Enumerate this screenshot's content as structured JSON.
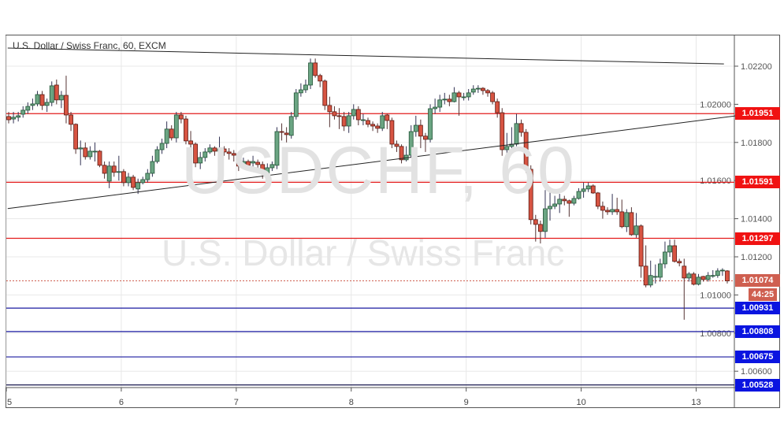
{
  "chart_data": {
    "type": "candlestick",
    "title": "U.S. Dollar / Swiss Franc, 60, EXCM",
    "watermark_symbol": "USDCHF, 60",
    "watermark_name": "U.S. Dollar / Swiss Franc",
    "ylim": [
      1.0048,
      1.0236
    ],
    "y_ticks": [
      "1.02200",
      "1.02000",
      "1.01800",
      "1.01600",
      "1.01400",
      "1.01200",
      "1.01000",
      "1.00800",
      "1.00600"
    ],
    "x_ticks": [
      {
        "label": "5",
        "index": 0
      },
      {
        "label": "6",
        "index": 24
      },
      {
        "label": "7",
        "index": 48
      },
      {
        "label": "8",
        "index": 72
      },
      {
        "label": "9",
        "index": 96
      },
      {
        "label": "10",
        "index": 120
      },
      {
        "label": "13",
        "index": 144
      }
    ],
    "candle_fields": [
      "open",
      "high",
      "low",
      "close"
    ],
    "candles": [
      [
        1.01936,
        1.0196,
        1.019,
        1.01919
      ],
      [
        1.01923,
        1.0196,
        1.019,
        1.01932
      ],
      [
        1.01932,
        1.0196,
        1.0191,
        1.0194
      ],
      [
        1.01948,
        1.0199,
        1.0193,
        1.01969
      ],
      [
        1.01969,
        1.0201,
        1.0195,
        1.01989
      ],
      [
        1.01994,
        1.0203,
        1.0197,
        1.02002
      ],
      [
        1.02002,
        1.0207,
        1.0199,
        1.02051
      ],
      [
        1.02051,
        1.0207,
        1.0197,
        1.01994
      ],
      [
        1.01994,
        1.0203,
        1.0196,
        1.0201
      ],
      [
        1.0201,
        1.0212,
        1.0199,
        1.02097
      ],
      [
        1.02101,
        1.0213,
        1.02,
        1.02023
      ],
      [
        1.02023,
        1.0207,
        1.0198,
        1.02047
      ],
      [
        1.02047,
        1.0215,
        1.019,
        1.01944
      ],
      [
        1.01944,
        1.0196,
        1.0186,
        1.01895
      ],
      [
        1.01895,
        1.019,
        1.0174,
        1.01766
      ],
      [
        1.01766,
        1.0181,
        1.0168,
        1.01771
      ],
      [
        1.01771,
        1.018,
        1.0171,
        1.01725
      ],
      [
        1.01725,
        1.0178,
        1.0171,
        1.01754
      ],
      [
        1.01754,
        1.018,
        1.017,
        1.01754
      ],
      [
        1.01754,
        1.0176,
        1.0167,
        1.0168
      ],
      [
        1.0168,
        1.017,
        1.0161,
        1.01638
      ],
      [
        1.01597,
        1.017,
        1.0156,
        1.01676
      ],
      [
        1.01676,
        1.017,
        1.0162,
        1.01643
      ],
      [
        1.01643,
        1.0173,
        1.016,
        1.01647
      ],
      [
        1.01647,
        1.0166,
        1.0157,
        1.01589
      ],
      [
        1.01589,
        1.0164,
        1.0157,
        1.01618
      ],
      [
        1.01618,
        1.0163,
        1.0155,
        1.01564
      ],
      [
        1.01556,
        1.0161,
        1.0153,
        1.01589
      ],
      [
        1.01589,
        1.0162,
        1.0158,
        1.01605
      ],
      [
        1.01605,
        1.0166,
        1.0159,
        1.01638
      ],
      [
        1.01638,
        1.0173,
        1.0162,
        1.017
      ],
      [
        1.017,
        1.0178,
        1.0169,
        1.01762
      ],
      [
        1.01762,
        1.0182,
        1.0174,
        1.01795
      ],
      [
        1.01795,
        1.0191,
        1.0177,
        1.0187
      ],
      [
        1.0187,
        1.0189,
        1.0181,
        1.01824
      ],
      [
        1.01824,
        1.0196,
        1.018,
        1.01944
      ],
      [
        1.01944,
        1.0196,
        1.019,
        1.01923
      ],
      [
        1.01923,
        1.0194,
        1.0179,
        1.01808
      ],
      [
        1.01808,
        1.0186,
        1.0176,
        1.01791
      ],
      [
        1.01791,
        1.018,
        1.0167,
        1.01692
      ],
      [
        1.01692,
        1.0175,
        1.0166,
        1.01721
      ],
      [
        1.01721,
        1.0177,
        1.017,
        1.0175
      ],
      [
        1.0175,
        1.0179,
        1.0174,
        1.01771
      ],
      [
        1.01771,
        1.0178,
        1.0173,
        1.01754
      ],
      [
        1.01754,
        1.0183,
        1.0172,
        1.01766
      ],
      [
        1.01766,
        1.0178,
        1.0173,
        1.0175
      ],
      [
        1.0175,
        1.0177,
        1.0171,
        1.01742
      ],
      [
        1.01742,
        1.0176,
        1.017,
        1.01733
      ],
      [
        1.01733,
        1.0174,
        1.0165,
        1.01676
      ],
      [
        1.01676,
        1.0172,
        1.0166,
        1.017
      ],
      [
        1.017,
        1.0171,
        1.0166,
        1.0168
      ],
      [
        1.01692,
        1.0173,
        1.0166,
        1.017
      ],
      [
        1.01696,
        1.0171,
        1.0165,
        1.01684
      ],
      [
        1.01684,
        1.017,
        1.0161,
        1.01638
      ],
      [
        1.01638,
        1.0169,
        1.0163,
        1.01667
      ],
      [
        1.01667,
        1.017,
        1.0165,
        1.01684
      ],
      [
        1.0168,
        1.0188,
        1.0166,
        1.01857
      ],
      [
        1.01857,
        1.019,
        1.0181,
        1.01853
      ],
      [
        1.01849,
        1.0188,
        1.018,
        1.01841
      ],
      [
        1.01837,
        1.0196,
        1.0182,
        1.01936
      ],
      [
        1.01936,
        1.0208,
        1.0192,
        1.0206
      ],
      [
        1.0206,
        1.0211,
        1.0204,
        1.02076
      ],
      [
        1.02076,
        1.0213,
        1.0206,
        1.02101
      ],
      [
        1.02101,
        1.0224,
        1.0208,
        1.02217
      ],
      [
        1.02217,
        1.0224,
        1.0214,
        1.02151
      ],
      [
        1.02151,
        1.0216,
        1.0209,
        1.02122
      ],
      [
        1.02122,
        1.0213,
        1.0197,
        1.01994
      ],
      [
        1.01994,
        1.0204,
        1.0188,
        1.01961
      ],
      [
        1.01961,
        1.0199,
        1.0192,
        1.0194
      ],
      [
        1.0194,
        1.0198,
        1.0187,
        1.01936
      ],
      [
        1.01936,
        1.0196,
        1.0186,
        1.01886
      ],
      [
        1.01886,
        1.0196,
        1.0185,
        1.0194
      ],
      [
        1.0194,
        1.02,
        1.0192,
        1.01973
      ],
      [
        1.01973,
        1.0199,
        1.0189,
        1.01919
      ],
      [
        1.01919,
        1.0195,
        1.0189,
        1.01919
      ],
      [
        1.01915,
        1.0193,
        1.0188,
        1.01895
      ],
      [
        1.01895,
        1.0191,
        1.0186,
        1.01886
      ],
      [
        1.01886,
        1.019,
        1.0185,
        1.01874
      ],
      [
        1.01874,
        1.0196,
        1.0186,
        1.0194
      ],
      [
        1.01944,
        1.0195,
        1.0187,
        1.01915
      ],
      [
        1.01915,
        1.0193,
        1.0177,
        1.01791
      ],
      [
        1.01791,
        1.0181,
        1.0175,
        1.01779
      ],
      [
        1.01779,
        1.0179,
        1.0169,
        1.01709
      ],
      [
        1.01709,
        1.0178,
        1.017,
        1.01733
      ],
      [
        1.01733,
        1.0189,
        1.0172,
        1.01857
      ],
      [
        1.01857,
        1.0194,
        1.0183,
        1.0189
      ],
      [
        1.0189,
        1.0192,
        1.0177,
        1.01833
      ],
      [
        1.01833,
        1.0185,
        1.0175,
        1.01816
      ],
      [
        1.01816,
        1.02,
        1.018,
        1.01977
      ],
      [
        1.01977,
        1.0203,
        1.0195,
        1.01985
      ],
      [
        1.01985,
        1.0205,
        1.0196,
        1.02023
      ],
      [
        1.02023,
        1.0206,
        1.02,
        1.02027
      ],
      [
        1.02027,
        1.0205,
        1.0199,
        1.02014
      ],
      [
        1.02014,
        1.0209,
        1.0201,
        1.0206
      ],
      [
        1.0206,
        1.0207,
        1.0194,
        1.02039
      ],
      [
        1.02039,
        1.0206,
        1.0202,
        1.02039
      ],
      [
        1.02039,
        1.0208,
        1.0202,
        1.0206
      ],
      [
        1.02064,
        1.021,
        1.0205,
        1.0208
      ],
      [
        1.02084,
        1.021,
        1.0206,
        1.02084
      ],
      [
        1.02084,
        1.0209,
        1.0205,
        1.02072
      ],
      [
        1.02072,
        1.0208,
        1.0204,
        1.0206
      ],
      [
        1.0206,
        1.0207,
        1.02,
        1.02014
      ],
      [
        1.02014,
        1.0203,
        1.0193,
        1.01956
      ],
      [
        1.01956,
        1.0198,
        1.0173,
        1.01762
      ],
      [
        1.01762,
        1.0185,
        1.0174,
        1.01779
      ],
      [
        1.01779,
        1.0188,
        1.0177,
        1.01791
      ],
      [
        1.01791,
        1.0195,
        1.0178,
        1.01899
      ],
      [
        1.01899,
        1.0192,
        1.0183,
        1.01853
      ],
      [
        1.01853,
        1.0187,
        1.0164,
        1.01659
      ],
      [
        1.01659,
        1.0168,
        1.0137,
        1.01395
      ],
      [
        1.01395,
        1.0142,
        1.0128,
        1.0137
      ],
      [
        1.0137,
        1.0139,
        1.0127,
        1.01333
      ],
      [
        1.01333,
        1.0155,
        1.013,
        1.01452
      ],
      [
        1.01452,
        1.0155,
        1.0139,
        1.01465
      ],
      [
        1.01465,
        1.0152,
        1.0145,
        1.01477
      ],
      [
        1.01477,
        1.0153,
        1.0143,
        1.01502
      ],
      [
        1.01502,
        1.0152,
        1.0147,
        1.01494
      ],
      [
        1.01494,
        1.015,
        1.0141,
        1.01481
      ],
      [
        1.01481,
        1.0152,
        1.0147,
        1.01506
      ],
      [
        1.01506,
        1.0156,
        1.015,
        1.01543
      ],
      [
        1.01543,
        1.0159,
        1.0151,
        1.01556
      ],
      [
        1.01556,
        1.0159,
        1.0154,
        1.01572
      ],
      [
        1.01572,
        1.0158,
        1.0153,
        1.01535
      ],
      [
        1.01535,
        1.0154,
        1.0145,
        1.01465
      ],
      [
        1.01465,
        1.0149,
        1.014,
        1.01444
      ],
      [
        1.01444,
        1.0146,
        1.0142,
        1.01436
      ],
      [
        1.01436,
        1.0153,
        1.0142,
        1.01448
      ],
      [
        1.01448,
        1.0151,
        1.0142,
        1.01436
      ],
      [
        1.01436,
        1.015,
        1.0135,
        1.01358
      ],
      [
        1.01358,
        1.0145,
        1.0133,
        1.01432
      ],
      [
        1.01432,
        1.0146,
        1.0131,
        1.01316
      ],
      [
        1.01316,
        1.0143,
        1.013,
        1.01362
      ],
      [
        1.01362,
        1.0137,
        1.0109,
        1.01151
      ],
      [
        1.01151,
        1.0126,
        1.0104,
        1.01052
      ],
      [
        1.01052,
        1.0118,
        1.0104,
        1.01102
      ],
      [
        1.01097,
        1.0116,
        1.0106,
        1.01097
      ],
      [
        1.01093,
        1.0119,
        1.0107,
        1.01163
      ],
      [
        1.01163,
        1.0128,
        1.0114,
        1.01225
      ],
      [
        1.01225,
        1.0129,
        1.012,
        1.01258
      ],
      [
        1.01258,
        1.0129,
        1.0117,
        1.01176
      ],
      [
        1.01176,
        1.0119,
        1.0115,
        1.01168
      ],
      [
        1.01151,
        1.0119,
        1.0087,
        1.01089
      ],
      [
        1.01089,
        1.0112,
        1.0107,
        1.0111
      ],
      [
        1.0111,
        1.0112,
        1.0105,
        1.01056
      ],
      [
        1.01056,
        1.0111,
        1.0105,
        1.01093
      ],
      [
        1.01097,
        1.011,
        1.0107,
        1.01081
      ],
      [
        1.01081,
        1.0112,
        1.0107,
        1.01102
      ],
      [
        1.01102,
        1.0113,
        1.0109,
        1.01102
      ],
      [
        1.01102,
        1.0114,
        1.0109,
        1.01126
      ],
      [
        1.0113,
        1.0114,
        1.011,
        1.0113
      ],
      [
        1.01126,
        1.0113,
        1.0106,
        1.01074
      ]
    ],
    "horizontal_levels": [
      {
        "price": "1.01951",
        "color": "#e31b1b",
        "label_color": "#f01212"
      },
      {
        "price": "1.01591",
        "color": "#e31b1b",
        "label_color": "#f01212"
      },
      {
        "price": "1.01297",
        "color": "#e31b1b",
        "label_color": "#f01212"
      },
      {
        "price": "1.00931",
        "color": "#1a1aa0",
        "label_color": "#0a14e0"
      },
      {
        "price": "1.00808",
        "color": "#1a1aa0",
        "label_color": "#0a14e0"
      },
      {
        "price": "1.00675",
        "color": "#1a1aa0",
        "label_color": "#0a14e0"
      },
      {
        "price": "1.00528",
        "color": "#1a1a50",
        "label_color": "#0a14e0"
      }
    ],
    "trendlines": [
      {
        "name": "upper-trendline",
        "from": {
          "index": -0.2,
          "price": 1.02295
        },
        "to": {
          "index": 149.3,
          "price": 1.02212
        }
      },
      {
        "name": "lower-trendline",
        "from": {
          "index": -0.2,
          "price": 1.01453
        },
        "to": {
          "index": 152,
          "price": 1.0194
        }
      }
    ],
    "last_price": "1.01074",
    "countdown": "44:25",
    "colors": {
      "up": "#6ba583",
      "up_border": "#225437",
      "down": "#d75442",
      "down_border": "#5b1a13",
      "last": "#cf5f50",
      "grid": "#e8e8e8"
    }
  }
}
